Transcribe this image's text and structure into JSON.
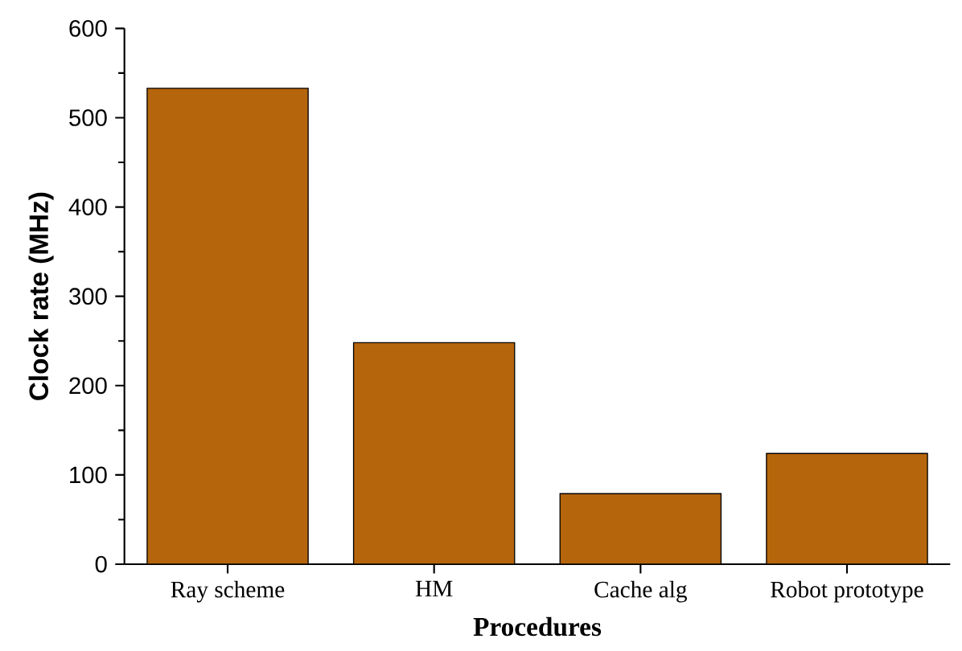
{
  "chart_data": {
    "type": "bar",
    "xlabel": "Procedures",
    "ylabel": "Clock rate (MHz)",
    "categories": [
      "Ray scheme",
      "HM",
      "Cache alg",
      "Robot prototype"
    ],
    "values": [
      533,
      248,
      79,
      124
    ],
    "color": "#b5650c",
    "ylim": [
      0,
      600
    ],
    "yticks": [
      0,
      100,
      200,
      300,
      400,
      500,
      600
    ]
  }
}
